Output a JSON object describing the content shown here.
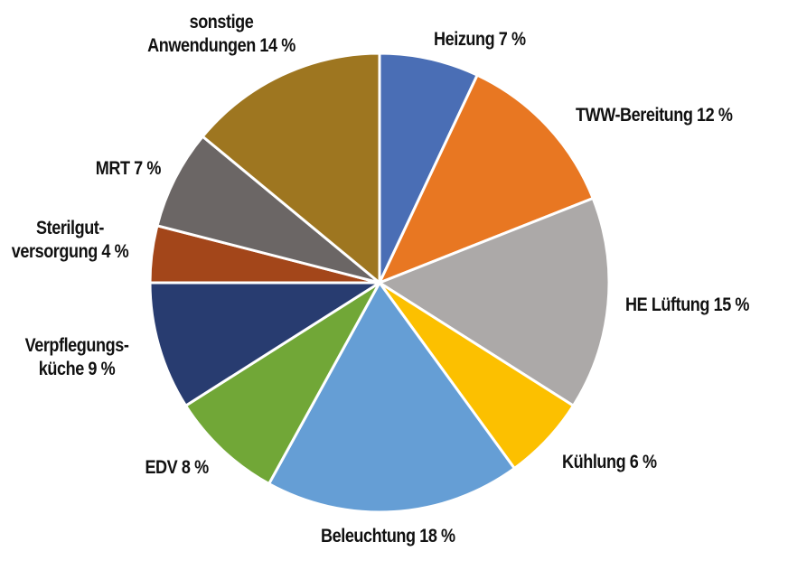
{
  "chart_data": {
    "type": "pie",
    "title": "",
    "start_angle_deg": 0,
    "direction": "clockwise",
    "slices": [
      {
        "label": "Heizung",
        "value": 7,
        "display": "Heizung 7 %",
        "color": "#4A6EB5"
      },
      {
        "label": "TWW-Bereitung",
        "value": 12,
        "display": "TWW-Bereitung 12 %",
        "color": "#E87722"
      },
      {
        "label": "HE Lüftung",
        "value": 15,
        "display": "HE Lüftung 15 %",
        "color": "#ACA9A8"
      },
      {
        "label": "Kühlung",
        "value": 6,
        "display": "Kühlung 6 %",
        "color": "#FCC000"
      },
      {
        "label": "Beleuchtung",
        "value": 18,
        "display": "Beleuchtung 18 %",
        "color": "#659ED5"
      },
      {
        "label": "EDV",
        "value": 8,
        "display": "EDV 8 %",
        "color": "#71A737"
      },
      {
        "label": "Verpflegungsküche",
        "value": 9,
        "display_lines": [
          "Verpflegungs-",
          "küche 9 %"
        ],
        "color": "#283C70"
      },
      {
        "label": "Sterilgutversorgung",
        "value": 4,
        "display_lines": [
          "Sterilgut-",
          "versorgung 4 %"
        ],
        "color": "#A3461A"
      },
      {
        "label": "MRT",
        "value": 7,
        "display": "MRT 7 %",
        "color": "#6B6665"
      },
      {
        "label": "sonstige Anwendungen",
        "value": 14,
        "display_lines": [
          "sonstige",
          "Anwendungen 14 %"
        ],
        "color": "#9E7620"
      }
    ],
    "unit": "%",
    "legend": "none (data labels outside slices)"
  },
  "labels": {
    "heizung": "Heizung 7 %",
    "tww": "TWW-Bereitung 12 %",
    "he_lueftung": "HE Lüftung 15 %",
    "kuehlung": "Kühlung 6 %",
    "beleuchtung": "Beleuchtung 18 %",
    "edv": "EDV 8 %",
    "verpflegung_1": "Verpflegungs-",
    "verpflegung_2": "küche 9 %",
    "steril_1": "Sterilgut-",
    "steril_2": "versorgung 4 %",
    "mrt": "MRT 7 %",
    "sonstige_1": "sonstige",
    "sonstige_2": "Anwendungen 14 %"
  }
}
